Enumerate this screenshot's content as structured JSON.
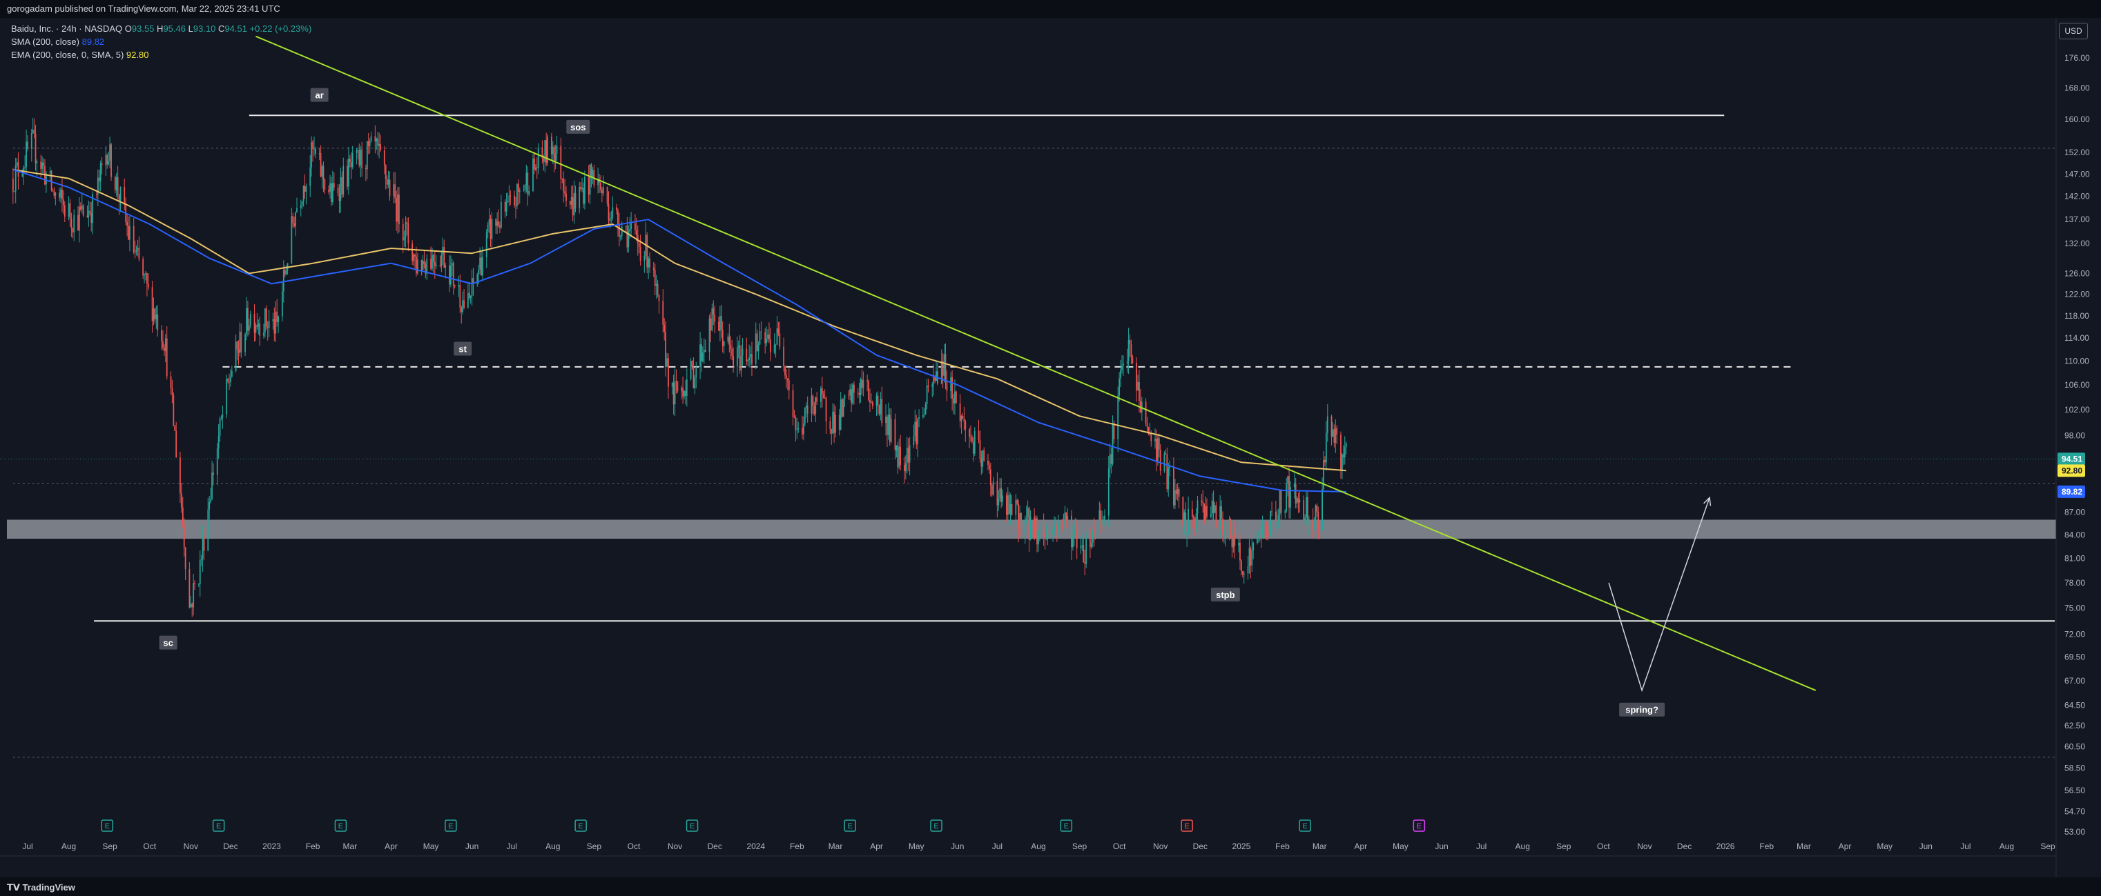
{
  "header": {
    "published": "gorogadam published on TradingView.com, Mar 22, 2025 23:41 UTC"
  },
  "legend": {
    "symbol": "Baidu, Inc. · 24h · NASDAQ",
    "ohlc_open_label": "O",
    "ohlc_open": "93.55",
    "ohlc_high_label": "H",
    "ohlc_high": "95.46",
    "ohlc_low_label": "L",
    "ohlc_low": "93.10",
    "ohlc_close_label": "C",
    "ohlc_close": "94.51",
    "change": "+0.22 (+0.23%)",
    "sma_label": "SMA (200, close)",
    "sma_value": "89.82",
    "ema_label": "EMA (200, close, 0, SMA, 5)",
    "ema_value": "92.80"
  },
  "currency": "USD",
  "footer": {
    "brand": "TradingView"
  },
  "colors": {
    "background": "#131722",
    "up": "#26a69a",
    "down": "#ef5350",
    "sma": "#2962ff",
    "ema": "#e9c46a",
    "trendline": "#a6e22e",
    "zone": "#9598a1"
  },
  "chart_data": {
    "type": "candlestick",
    "y_scale": "log",
    "ylim": [
      52.5,
      182
    ],
    "price_ticks": [
      "176.00",
      "168.00",
      "160.00",
      "152.00",
      "147.00",
      "142.00",
      "137.00",
      "132.00",
      "126.00",
      "122.00",
      "118.00",
      "114.00",
      "110.00",
      "106.00",
      "102.00",
      "98.00",
      "87.00",
      "84.00",
      "81.00",
      "78.00",
      "75.00",
      "72.00",
      "69.50",
      "67.00",
      "64.50",
      "62.50",
      "60.50",
      "58.50",
      "56.50",
      "54.70",
      "53.00"
    ],
    "time_ticks": [
      {
        "t": "2022-07-01",
        "label": "Jul"
      },
      {
        "t": "2022-08-01",
        "label": "Aug"
      },
      {
        "t": "2022-09-01",
        "label": "Sep"
      },
      {
        "t": "2022-10-01",
        "label": "Oct"
      },
      {
        "t": "2022-11-01",
        "label": "Nov"
      },
      {
        "t": "2022-12-01",
        "label": "Dec"
      },
      {
        "t": "2023-01-01",
        "label": "2023"
      },
      {
        "t": "2023-02-01",
        "label": "Feb"
      },
      {
        "t": "2023-03-01",
        "label": "Mar"
      },
      {
        "t": "2023-04-01",
        "label": "Apr"
      },
      {
        "t": "2023-05-01",
        "label": "May"
      },
      {
        "t": "2023-06-01",
        "label": "Jun"
      },
      {
        "t": "2023-07-01",
        "label": "Jul"
      },
      {
        "t": "2023-08-01",
        "label": "Aug"
      },
      {
        "t": "2023-09-01",
        "label": "Sep"
      },
      {
        "t": "2023-10-01",
        "label": "Oct"
      },
      {
        "t": "2023-11-01",
        "label": "Nov"
      },
      {
        "t": "2023-12-01",
        "label": "Dec"
      },
      {
        "t": "2024-01-01",
        "label": "2024"
      },
      {
        "t": "2024-02-01",
        "label": "Feb"
      },
      {
        "t": "2024-03-01",
        "label": "Mar"
      },
      {
        "t": "2024-04-01",
        "label": "Apr"
      },
      {
        "t": "2024-05-01",
        "label": "May"
      },
      {
        "t": "2024-06-01",
        "label": "Jun"
      },
      {
        "t": "2024-07-01",
        "label": "Jul"
      },
      {
        "t": "2024-08-01",
        "label": "Aug"
      },
      {
        "t": "2024-09-01",
        "label": "Sep"
      },
      {
        "t": "2024-10-01",
        "label": "Oct"
      },
      {
        "t": "2024-11-01",
        "label": "Nov"
      },
      {
        "t": "2024-12-01",
        "label": "Dec"
      },
      {
        "t": "2025-01-01",
        "label": "2025"
      },
      {
        "t": "2025-02-01",
        "label": "Feb"
      },
      {
        "t": "2025-03-01",
        "label": "Mar"
      },
      {
        "t": "2025-04-01",
        "label": "Apr"
      },
      {
        "t": "2025-05-01",
        "label": "May"
      },
      {
        "t": "2025-06-01",
        "label": "Jun"
      },
      {
        "t": "2025-07-01",
        "label": "Jul"
      },
      {
        "t": "2025-08-01",
        "label": "Aug"
      },
      {
        "t": "2025-09-01",
        "label": "Sep"
      },
      {
        "t": "2025-10-01",
        "label": "Oct"
      },
      {
        "t": "2025-11-01",
        "label": "Nov"
      },
      {
        "t": "2025-12-01",
        "label": "Dec"
      },
      {
        "t": "2026-01-01",
        "label": "2026"
      },
      {
        "t": "2026-02-01",
        "label": "Feb"
      },
      {
        "t": "2026-03-01",
        "label": "Mar"
      },
      {
        "t": "2026-04-01",
        "label": "Apr"
      },
      {
        "t": "2026-05-01",
        "label": "May"
      },
      {
        "t": "2026-06-01",
        "label": "Jun"
      },
      {
        "t": "2026-07-01",
        "label": "Jul"
      },
      {
        "t": "2026-08-01",
        "label": "Aug"
      },
      {
        "t": "2026-09-01",
        "label": "Sep"
      }
    ],
    "price_path": [
      [
        "2022-06-20",
        146
      ],
      [
        "2022-07-05",
        154
      ],
      [
        "2022-07-20",
        143
      ],
      [
        "2022-08-05",
        137
      ],
      [
        "2022-08-20",
        140
      ],
      [
        "2022-08-30",
        153
      ],
      [
        "2022-09-15",
        134
      ],
      [
        "2022-09-30",
        122
      ],
      [
        "2022-10-12",
        114
      ],
      [
        "2022-10-24",
        90
      ],
      [
        "2022-10-31",
        75
      ],
      [
        "2022-11-08",
        80
      ],
      [
        "2022-11-18",
        93
      ],
      [
        "2022-12-01",
        108
      ],
      [
        "2022-12-15",
        118
      ],
      [
        "2023-01-05",
        116
      ],
      [
        "2023-01-18",
        138
      ],
      [
        "2023-02-01",
        152
      ],
      [
        "2023-02-15",
        142
      ],
      [
        "2023-03-01",
        148
      ],
      [
        "2023-03-20",
        153
      ],
      [
        "2023-04-05",
        140
      ],
      [
        "2023-04-20",
        128
      ],
      [
        "2023-05-10",
        130
      ],
      [
        "2023-05-28",
        119
      ],
      [
        "2023-06-15",
        135
      ],
      [
        "2023-07-01",
        140
      ],
      [
        "2023-07-15",
        147
      ],
      [
        "2023-08-01",
        154
      ],
      [
        "2023-08-15",
        140
      ],
      [
        "2023-09-01",
        147
      ],
      [
        "2023-09-15",
        138
      ],
      [
        "2023-10-01",
        133
      ],
      [
        "2023-10-12",
        130
      ],
      [
        "2023-10-30",
        104
      ],
      [
        "2023-11-15",
        108
      ],
      [
        "2023-12-01",
        118
      ],
      [
        "2023-12-15",
        110
      ],
      [
        "2024-01-05",
        113
      ],
      [
        "2024-01-20",
        114
      ],
      [
        "2024-02-01",
        98
      ],
      [
        "2024-02-15",
        104
      ],
      [
        "2024-03-01",
        100
      ],
      [
        "2024-03-20",
        106
      ],
      [
        "2024-04-05",
        102
      ],
      [
        "2024-04-20",
        94
      ],
      [
        "2024-05-05",
        101
      ],
      [
        "2024-05-20",
        110
      ],
      [
        "2024-06-05",
        100
      ],
      [
        "2024-06-20",
        94
      ],
      [
        "2024-07-05",
        88
      ],
      [
        "2024-07-20",
        86
      ],
      [
        "2024-08-05",
        84
      ],
      [
        "2024-08-20",
        86
      ],
      [
        "2024-09-05",
        82
      ],
      [
        "2024-09-20",
        88
      ],
      [
        "2024-10-01",
        106
      ],
      [
        "2024-10-08",
        112
      ],
      [
        "2024-10-20",
        100
      ],
      [
        "2024-11-05",
        93
      ],
      [
        "2024-11-20",
        85
      ],
      [
        "2024-12-05",
        88
      ],
      [
        "2024-12-20",
        85
      ],
      [
        "2025-01-05",
        80
      ],
      [
        "2025-01-15",
        84
      ],
      [
        "2025-01-25",
        86
      ],
      [
        "2025-02-05",
        90
      ],
      [
        "2025-02-15",
        88
      ],
      [
        "2025-02-28",
        86
      ],
      [
        "2025-03-08",
        102
      ],
      [
        "2025-03-15",
        95
      ],
      [
        "2025-03-21",
        94.5
      ]
    ],
    "sma_200": [
      [
        "2022-06-20",
        148
      ],
      [
        "2022-08-01",
        144
      ],
      [
        "2022-10-01",
        136
      ],
      [
        "2022-11-15",
        129
      ],
      [
        "2023-01-01",
        124
      ],
      [
        "2023-02-15",
        126
      ],
      [
        "2023-04-01",
        128
      ],
      [
        "2023-06-01",
        124
      ],
      [
        "2023-07-15",
        128
      ],
      [
        "2023-09-01",
        135
      ],
      [
        "2023-10-12",
        137
      ],
      [
        "2023-12-01",
        129
      ],
      [
        "2024-02-01",
        120
      ],
      [
        "2024-04-01",
        111
      ],
      [
        "2024-06-01",
        106
      ],
      [
        "2024-08-01",
        100
      ],
      [
        "2024-10-01",
        96
      ],
      [
        "2024-12-01",
        92
      ],
      [
        "2025-02-01",
        90
      ],
      [
        "2025-03-21",
        89.82
      ]
    ],
    "ema_200": [
      [
        "2022-06-20",
        148
      ],
      [
        "2022-08-01",
        146
      ],
      [
        "2022-09-15",
        140
      ],
      [
        "2022-11-01",
        133
      ],
      [
        "2022-12-15",
        126
      ],
      [
        "2023-02-01",
        128
      ],
      [
        "2023-04-01",
        131
      ],
      [
        "2023-06-01",
        130
      ],
      [
        "2023-08-01",
        134
      ],
      [
        "2023-09-15",
        136
      ],
      [
        "2023-11-01",
        128
      ],
      [
        "2024-01-01",
        122
      ],
      [
        "2024-03-01",
        116
      ],
      [
        "2024-05-01",
        111
      ],
      [
        "2024-07-01",
        107
      ],
      [
        "2024-09-01",
        101
      ],
      [
        "2024-11-01",
        98
      ],
      [
        "2025-01-01",
        94
      ],
      [
        "2025-03-21",
        92.8
      ]
    ],
    "horizontal_lines": [
      {
        "name": "ar-resistance",
        "price": 161,
        "t1": "2022-12-15",
        "t2": "2025-12-31",
        "style": "solid"
      },
      {
        "name": "st-level",
        "price": 109,
        "t1": "2022-11-25",
        "t2": "2026-02-20",
        "style": "dashed"
      },
      {
        "name": "sc-support",
        "price": 73.5,
        "t1": "2022-08-20",
        "t2": "2026-09-30",
        "style": "solid"
      },
      {
        "name": "upper-dotted",
        "price": 153,
        "t1": "2022-06-20",
        "t2": "2026-09-30",
        "style": "dotted"
      },
      {
        "name": "mid-dotted",
        "price": 91,
        "t1": "2022-06-20",
        "t2": "2026-09-30",
        "style": "dotted"
      },
      {
        "name": "lower-dotted",
        "price": 59.5,
        "t1": "2022-06-20",
        "t2": "2026-09-30",
        "style": "dotted"
      }
    ],
    "zone": {
      "price_top": 86,
      "price_bottom": 83.5
    },
    "trendline": {
      "t1": "2022-12-20",
      "p1": 182,
      "t2": "2026-03-10",
      "p2": 66
    },
    "projection": [
      [
        "2025-10-05",
        78
      ],
      [
        "2025-10-30",
        66
      ],
      [
        "2025-12-20",
        89
      ]
    ],
    "wyckoff_labels": [
      {
        "text": "ar",
        "t": "2023-02-06",
        "price": 166
      },
      {
        "text": "sos",
        "t": "2023-08-20",
        "price": 158
      },
      {
        "text": "st",
        "t": "2023-05-25",
        "price": 112
      },
      {
        "text": "sc",
        "t": "2022-10-15",
        "price": 71
      },
      {
        "text": "stpb",
        "t": "2024-12-20",
        "price": 76.5
      },
      {
        "text": "spring?",
        "t": "2025-10-30",
        "price": 64
      }
    ],
    "price_tags": [
      {
        "value": "94.51",
        "price": 94.51,
        "bg": "#26a69a",
        "fg": "#ffffff"
      },
      {
        "value": "92.80",
        "price": 92.8,
        "bg": "#f5e642",
        "fg": "#131722"
      },
      {
        "value": "89.82",
        "price": 89.82,
        "bg": "#2962ff",
        "fg": "#ffffff"
      }
    ],
    "events": [
      {
        "t": "2022-08-30",
        "type": "E",
        "color": "#26a69a"
      },
      {
        "t": "2022-11-22",
        "type": "E",
        "color": "#26a69a"
      },
      {
        "t": "2023-02-22",
        "type": "E",
        "color": "#26a69a"
      },
      {
        "t": "2023-05-16",
        "type": "E",
        "color": "#26a69a"
      },
      {
        "t": "2023-08-22",
        "type": "E",
        "color": "#26a69a"
      },
      {
        "t": "2023-11-14",
        "type": "E",
        "color": "#26a69a"
      },
      {
        "t": "2024-03-12",
        "type": "E",
        "color": "#26a69a"
      },
      {
        "t": "2024-05-16",
        "type": "E",
        "color": "#26a69a"
      },
      {
        "t": "2024-08-22",
        "type": "E",
        "color": "#26a69a"
      },
      {
        "t": "2024-11-21",
        "type": "E",
        "color": "#ef5350"
      },
      {
        "t": "2025-02-18",
        "type": "E",
        "color": "#26a69a"
      },
      {
        "t": "2025-05-15",
        "type": "E",
        "color": "#e040fb"
      }
    ],
    "grid": false
  }
}
